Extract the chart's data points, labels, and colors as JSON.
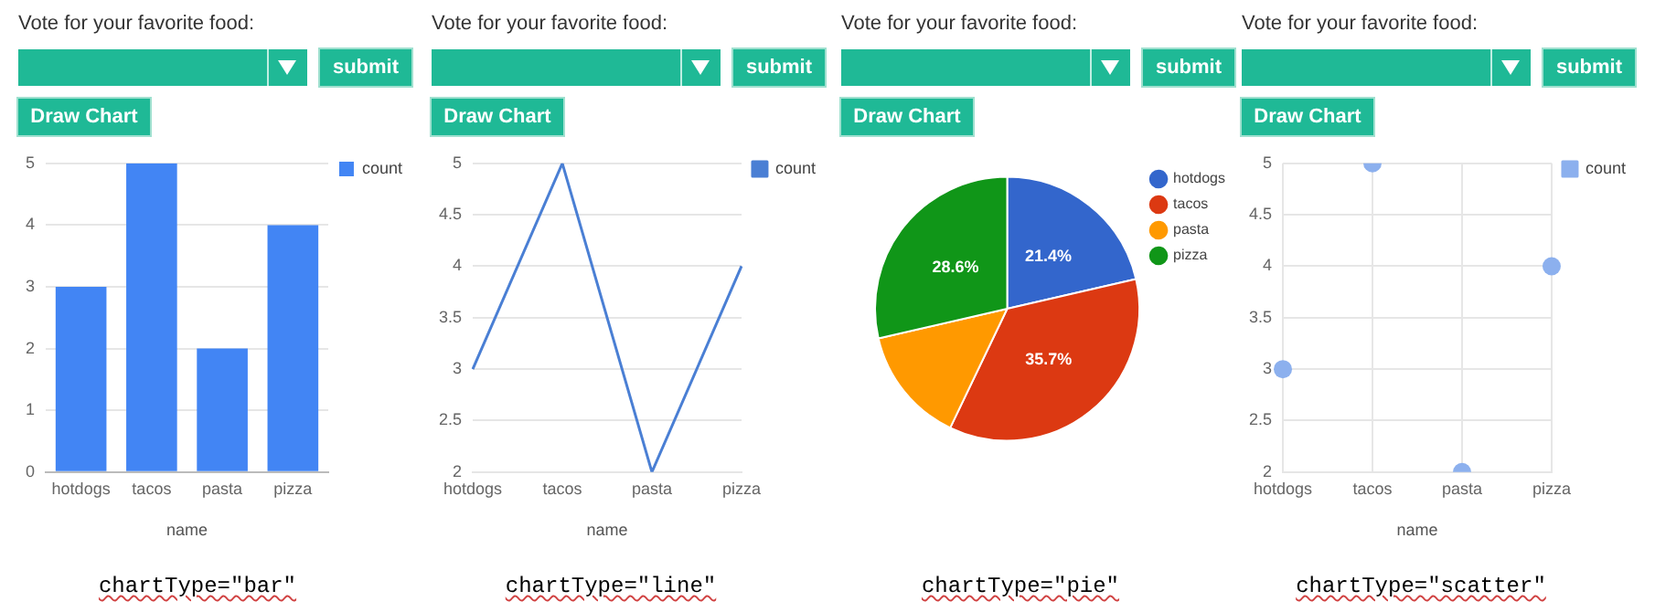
{
  "chart_data": [
    {
      "type": "bar",
      "categories": [
        "hotdogs",
        "tacos",
        "pasta",
        "pizza"
      ],
      "xlabel": "name",
      "series": [
        {
          "name": "count",
          "color": "#4285f4",
          "values": [
            3,
            5,
            2,
            4
          ]
        }
      ],
      "ylim": [
        0,
        5
      ],
      "yticks": [
        0,
        1,
        2,
        3,
        4,
        5
      ],
      "grid": "y",
      "legend": "right",
      "annotations": [
        "Vote for your favorite food:",
        "submit",
        "Draw Chart",
        "chartType=\"bar\""
      ]
    },
    {
      "type": "line",
      "categories": [
        "hotdogs",
        "tacos",
        "pasta",
        "pizza"
      ],
      "xlabel": "name",
      "series": [
        {
          "name": "count",
          "color": "#4a7fd4",
          "values": [
            3,
            5,
            2,
            4
          ]
        }
      ],
      "ylim": [
        2,
        5
      ],
      "yticks": [
        2,
        2.5,
        3,
        3.5,
        4,
        4.5,
        5
      ],
      "grid": "y",
      "legend": "right",
      "annotations": [
        "Vote for your favorite food:",
        "submit",
        "Draw Chart",
        "chartType=\"line\""
      ]
    },
    {
      "type": "pie",
      "categories": [
        "hotdogs",
        "tacos",
        "pasta",
        "pizza"
      ],
      "values": [
        21.4,
        35.7,
        14.3,
        28.6
      ],
      "colors": [
        "#3366cc",
        "#dc3912",
        "#ff9900",
        "#109618"
      ],
      "value_labels": [
        "21.4%",
        "35.7%",
        null,
        "28.6%"
      ],
      "legend": "right",
      "annotations": [
        "Vote for your favorite food:",
        "submit",
        "Draw Chart",
        "chartType=\"pie\""
      ]
    },
    {
      "type": "scatter",
      "categories": [
        "hotdogs",
        "tacos",
        "pasta",
        "pizza"
      ],
      "xlabel": "name",
      "series": [
        {
          "name": "count",
          "color": "#8cb0ee",
          "values": [
            3,
            5,
            2,
            4
          ]
        }
      ],
      "ylim": [
        2,
        5
      ],
      "yticks": [
        2,
        2.5,
        3,
        3.5,
        4,
        4.5,
        5
      ],
      "grid": true,
      "legend": "right",
      "marker": "circle",
      "annotations": [
        "Vote for your favorite food:",
        "submit",
        "Draw Chart",
        "chartType=\"scatter\""
      ]
    }
  ]
}
